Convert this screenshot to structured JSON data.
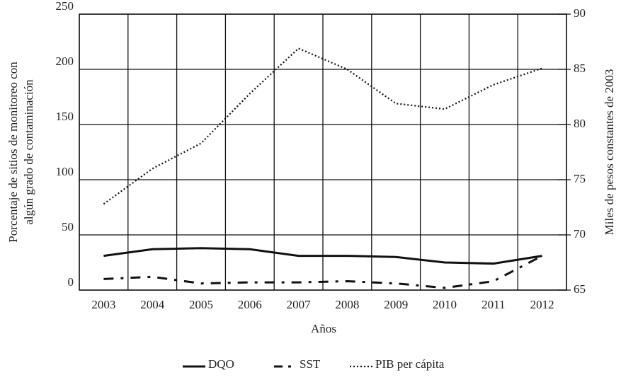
{
  "chart_data": {
    "type": "line",
    "categories": [
      "2003",
      "2004",
      "2005",
      "2006",
      "2007",
      "2008",
      "2009",
      "2010",
      "2011",
      "2012"
    ],
    "xlabel": "Años",
    "ylabel": [
      "Porcentaje de sitios de monitoreo con",
      "algún grado de contaminación"
    ],
    "y2label": "Miles de pesos constantes de 2003",
    "ylim": [
      0,
      250
    ],
    "yticks": [
      0,
      50,
      100,
      150,
      200,
      250
    ],
    "y2lim": [
      65,
      90
    ],
    "y2ticks": [
      65,
      70,
      75,
      80,
      85,
      90
    ],
    "grid": true,
    "legend": "bottom",
    "series": [
      {
        "name": "DQO",
        "color": "#111111",
        "dash": "solid",
        "values": [
          31,
          37,
          38,
          37,
          31,
          31,
          30,
          25,
          24,
          31
        ]
      },
      {
        "name": "SST",
        "color": "#111111",
        "dash": "dashdot",
        "values": [
          10,
          12,
          6,
          7,
          7,
          8,
          6,
          2,
          8,
          31
        ]
      },
      {
        "name": "PIB per cápita",
        "color": "#111111",
        "dash": "dotted",
        "axis": "y2",
        "values": [
          72.8,
          76.0,
          78.3,
          82.8,
          86.9,
          85.0,
          81.9,
          81.4,
          83.6,
          85.1
        ]
      }
    ]
  }
}
